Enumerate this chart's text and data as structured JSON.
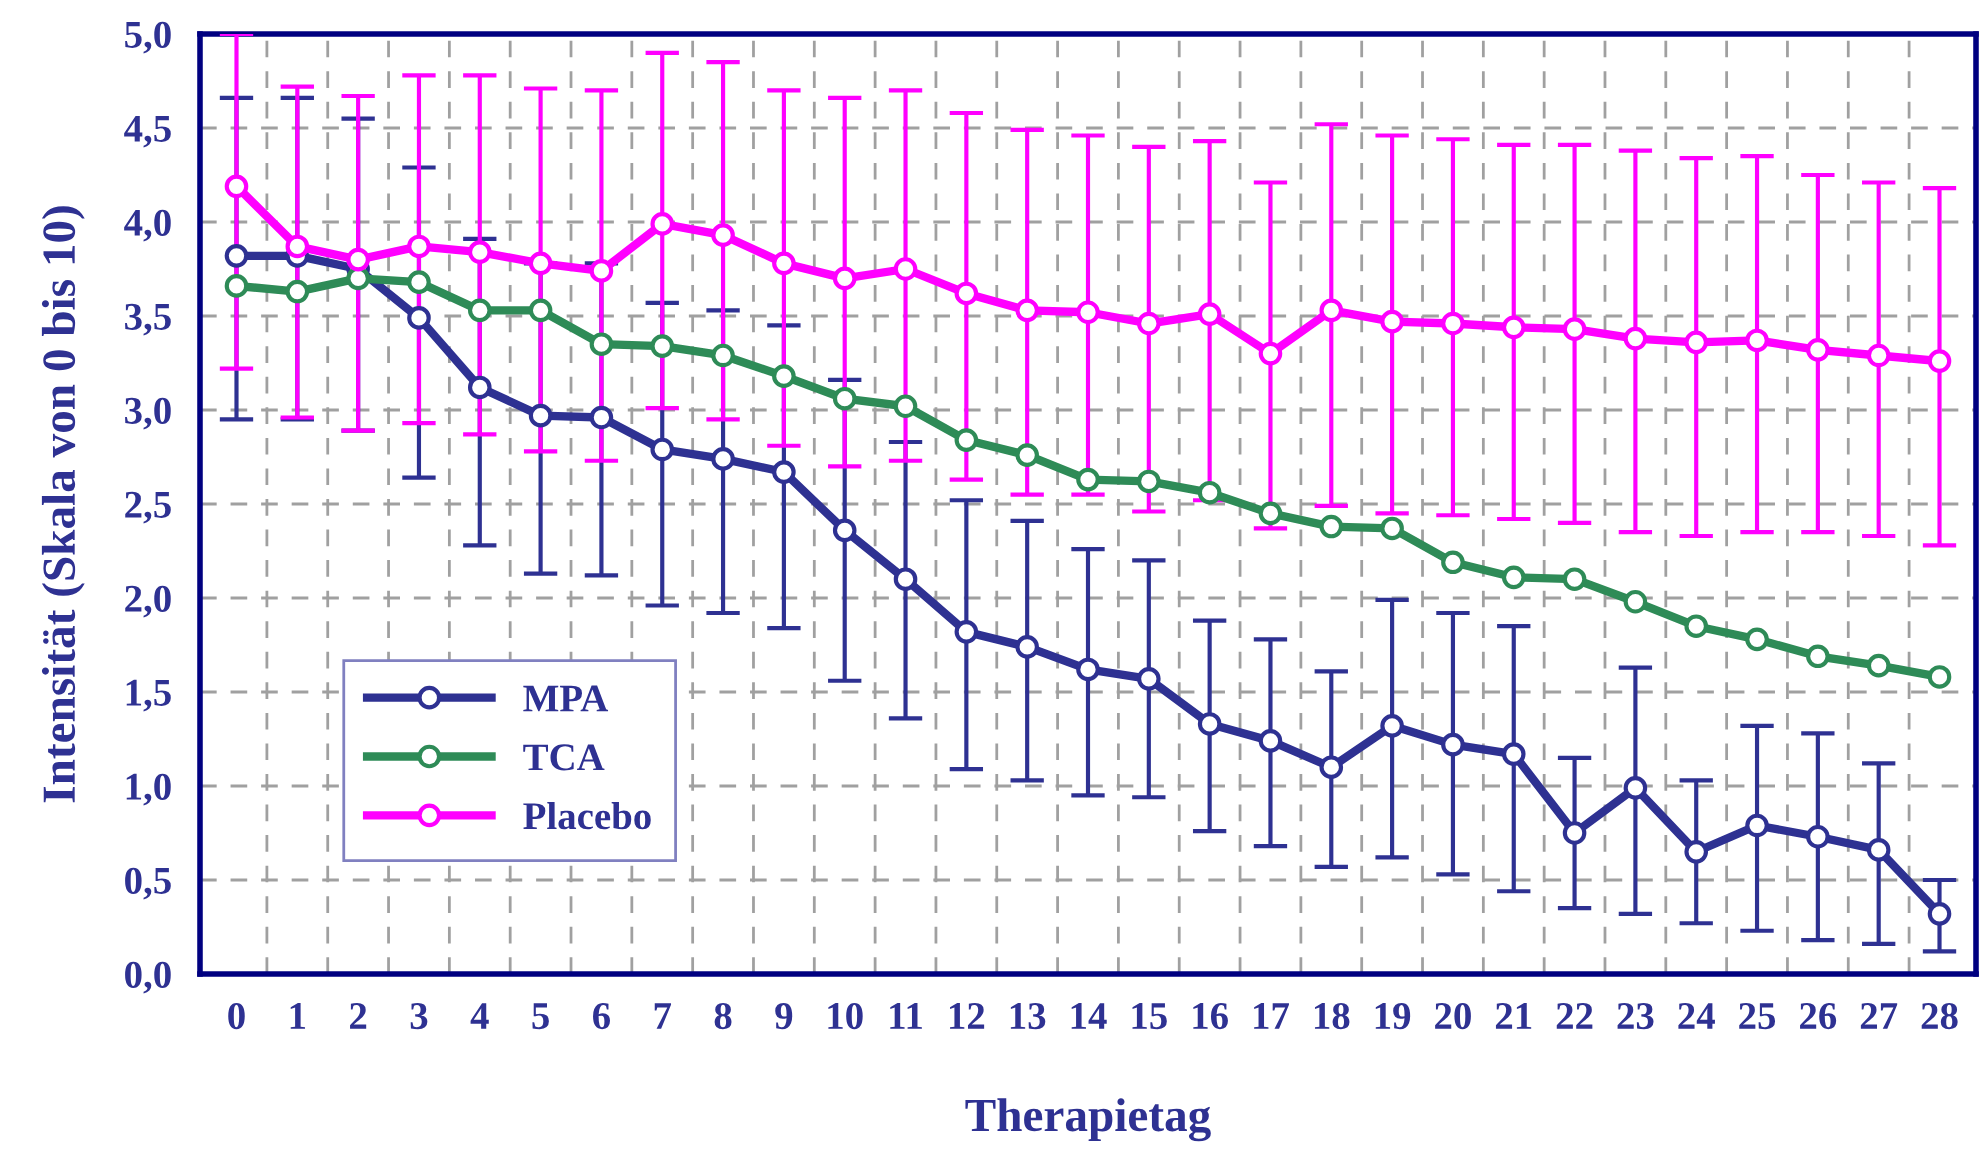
{
  "chart_data": {
    "type": "line",
    "xlabel": "Therapietag",
    "ylabel": "Intensität (Skala von 0 bis 10)",
    "categories": [
      "0",
      "1",
      "2",
      "3",
      "4",
      "5",
      "6",
      "7",
      "8",
      "9",
      "10",
      "11",
      "12",
      "13",
      "14",
      "15",
      "16",
      "17",
      "18",
      "19",
      "20",
      "21",
      "22",
      "23",
      "24",
      "25",
      "26",
      "27",
      "28"
    ],
    "ylim": [
      0,
      5
    ],
    "yticks": [
      {
        "value": 0,
        "label": "0,0"
      },
      {
        "value": 0.5,
        "label": "0,5"
      },
      {
        "value": 1,
        "label": "1,0"
      },
      {
        "value": 1.5,
        "label": "1,5"
      },
      {
        "value": 2,
        "label": "2,0"
      },
      {
        "value": 2.5,
        "label": "2,5"
      },
      {
        "value": 3,
        "label": "3,0"
      },
      {
        "value": 3.5,
        "label": "3,5"
      },
      {
        "value": 4,
        "label": "4,0"
      },
      {
        "value": 4.5,
        "label": "4,5"
      },
      {
        "value": 5,
        "label": "5,0"
      }
    ],
    "grid": true,
    "legend": "bottom left",
    "marker": "circle",
    "line_style": "solid",
    "series": [
      {
        "name": "MPA",
        "color": "#2e3192",
        "values": [
          3.82,
          3.82,
          3.75,
          3.49,
          3.12,
          2.97,
          2.96,
          2.79,
          2.74,
          2.67,
          2.36,
          2.1,
          1.82,
          1.74,
          1.62,
          1.57,
          1.33,
          1.24,
          1.1,
          1.32,
          1.22,
          1.17,
          0.75,
          0.99,
          0.65,
          0.79,
          0.73,
          0.66,
          0.32
        ],
        "errors": [
          [
            2.95,
            4.66
          ],
          [
            2.95,
            4.66
          ],
          [
            2.89,
            4.55
          ],
          [
            2.64,
            4.29
          ],
          [
            2.28,
            3.91
          ],
          [
            2.13,
            3.78
          ],
          [
            2.12,
            3.78
          ],
          [
            1.96,
            3.57
          ],
          [
            1.92,
            3.53
          ],
          [
            1.84,
            3.45
          ],
          [
            1.56,
            3.16
          ],
          [
            1.36,
            2.83
          ],
          [
            1.09,
            2.52
          ],
          [
            1.03,
            2.41
          ],
          [
            0.95,
            2.26
          ],
          [
            0.94,
            2.2
          ],
          [
            0.76,
            1.88
          ],
          [
            0.68,
            1.78
          ],
          [
            0.57,
            1.61
          ],
          [
            0.62,
            1.99
          ],
          [
            0.53,
            1.92
          ],
          [
            0.44,
            1.85
          ],
          [
            0.35,
            1.15
          ],
          [
            0.32,
            1.63
          ],
          [
            0.27,
            1.03
          ],
          [
            0.23,
            1.32
          ],
          [
            0.18,
            1.28
          ],
          [
            0.16,
            1.12
          ],
          [
            0.12,
            0.5
          ]
        ]
      },
      {
        "name": "TCA",
        "color": "#2e8b57",
        "values": [
          3.66,
          3.63,
          3.7,
          3.68,
          3.53,
          3.53,
          3.35,
          3.34,
          3.29,
          3.18,
          3.06,
          3.02,
          2.84,
          2.76,
          2.63,
          2.62,
          2.56,
          2.45,
          2.38,
          2.37,
          2.19,
          2.11,
          2.1,
          1.98,
          1.85,
          1.78,
          1.69,
          1.64,
          1.58
        ]
      },
      {
        "name": "Placebo",
        "color": "#ff00ff",
        "values": [
          4.19,
          3.87,
          3.8,
          3.87,
          3.84,
          3.78,
          3.74,
          3.99,
          3.93,
          3.78,
          3.7,
          3.75,
          3.62,
          3.53,
          3.52,
          3.46,
          3.51,
          3.3,
          3.53,
          3.47,
          3.46,
          3.44,
          3.43,
          3.38,
          3.36,
          3.37,
          3.32,
          3.29,
          3.26
        ],
        "errors": [
          [
            3.22,
            5.0
          ],
          [
            2.96,
            4.72
          ],
          [
            2.89,
            4.67
          ],
          [
            2.93,
            4.78
          ],
          [
            2.87,
            4.78
          ],
          [
            2.78,
            4.71
          ],
          [
            2.73,
            4.7
          ],
          [
            3.01,
            4.9
          ],
          [
            2.95,
            4.85
          ],
          [
            2.81,
            4.7
          ],
          [
            2.7,
            4.66
          ],
          [
            2.73,
            4.7
          ],
          [
            2.63,
            4.58
          ],
          [
            2.55,
            4.49
          ],
          [
            2.55,
            4.46
          ],
          [
            2.46,
            4.4
          ],
          [
            2.52,
            4.43
          ],
          [
            2.37,
            4.21
          ],
          [
            2.49,
            4.52
          ],
          [
            2.45,
            4.46
          ],
          [
            2.44,
            4.44
          ],
          [
            2.42,
            4.41
          ],
          [
            2.4,
            4.41
          ],
          [
            2.35,
            4.38
          ],
          [
            2.33,
            4.34
          ],
          [
            2.35,
            4.35
          ],
          [
            2.35,
            4.25
          ],
          [
            2.33,
            4.21
          ],
          [
            2.28,
            4.18
          ]
        ]
      }
    ]
  }
}
